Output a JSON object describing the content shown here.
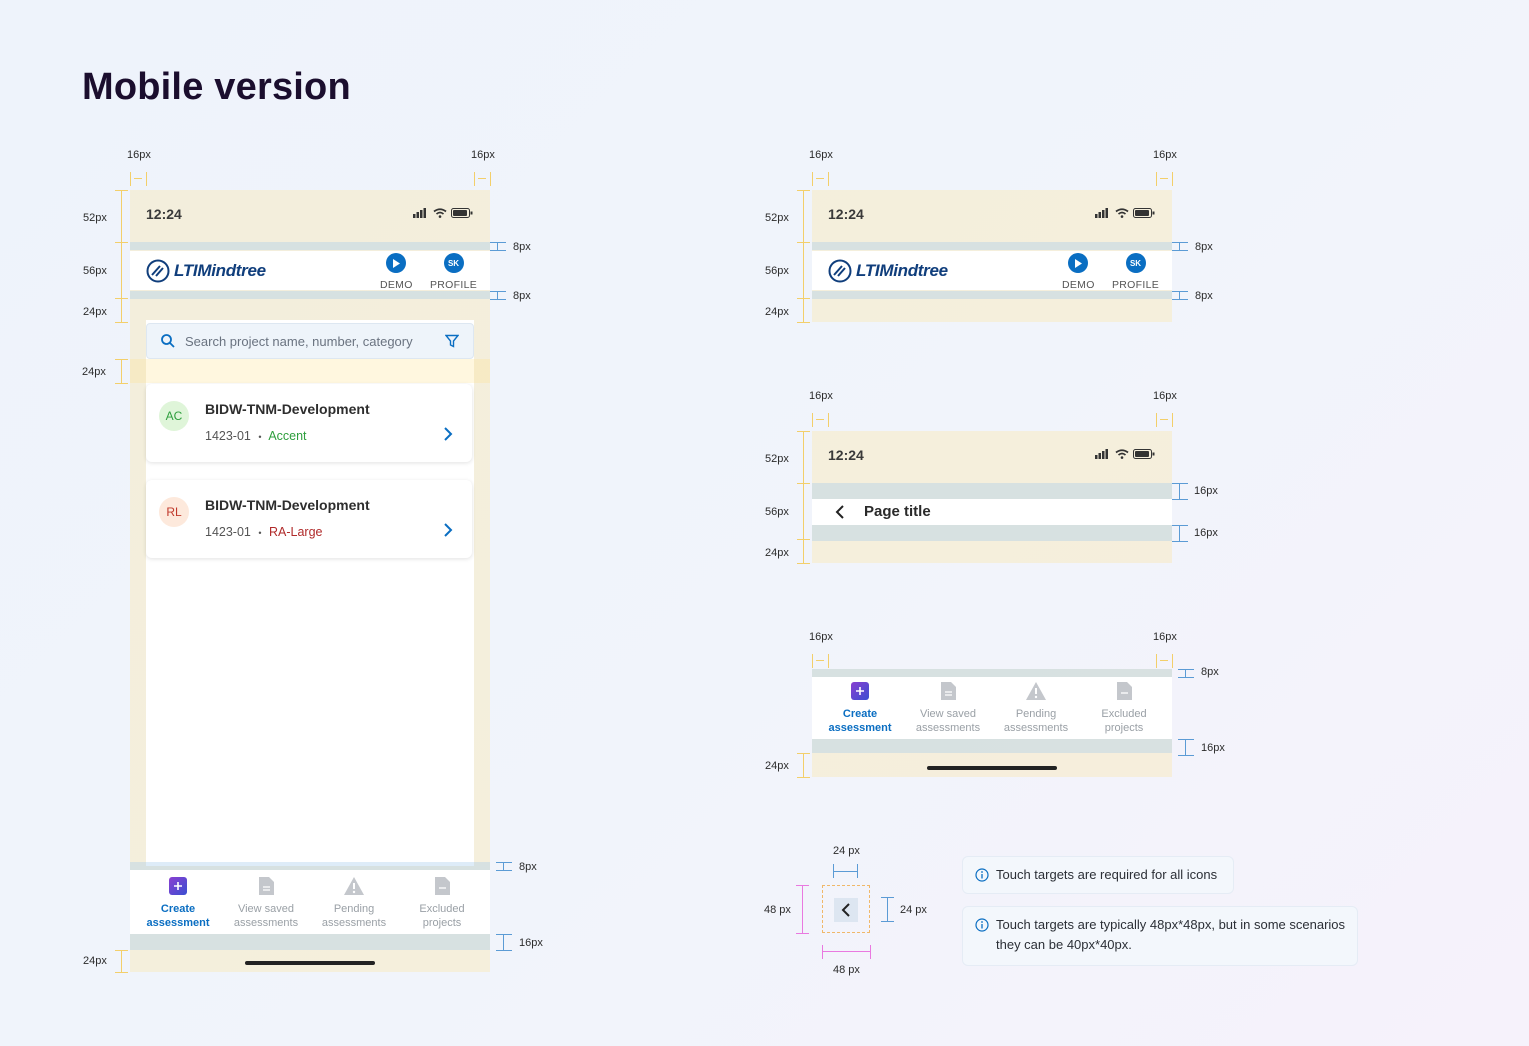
{
  "page": {
    "title": "Mobile version"
  },
  "dims": {
    "px16": "16px",
    "px8": "8px",
    "px52": "52px",
    "px56": "56px",
    "px24": "24px",
    "t24": "24 px",
    "t48": "48 px"
  },
  "status": {
    "time": "12:24"
  },
  "header": {
    "brand": "LTIMindtree",
    "demo_label": "DEMO",
    "profile_label": "PROFILE",
    "profile_initials": "SK"
  },
  "search": {
    "placeholder": "Search project name, number, category"
  },
  "projects": [
    {
      "initials": "AC",
      "name": "BIDW-TNM-Development",
      "number": "1423-01",
      "category": "Accent",
      "category_color": "#2e9e3d",
      "avatar_bg": "#dff5d9",
      "avatar_fg": "#2e9e3d"
    },
    {
      "initials": "RL",
      "name": "BIDW-TNM-Development",
      "number": "1423-01",
      "category": "RA-Large",
      "category_color": "#b02a2a",
      "avatar_bg": "#fde9dc",
      "avatar_fg": "#c0392b"
    }
  ],
  "bullet": "•",
  "tabs": [
    {
      "line1": "Create",
      "line2": "assessment",
      "icon": "plus-square-icon",
      "active": true
    },
    {
      "line1": "View saved",
      "line2": "assessments",
      "icon": "document-icon",
      "active": false
    },
    {
      "line1": "Pending",
      "line2": "assessments",
      "icon": "warning-icon",
      "active": false
    },
    {
      "line1": "Excluded",
      "line2": "projects",
      "icon": "document-icon",
      "active": false
    }
  ],
  "page_title_bar": {
    "title": "Page title"
  },
  "notes": {
    "note1": "Touch targets are required for all icons",
    "note2_line1": "Touch targets are typically 48px*48px, but in some scenarios",
    "note2_line2": "they can be 40px*40px."
  },
  "colors": {
    "accent": "#0a6ec2",
    "brand": "#103e7c",
    "purple": "#6a3fd1"
  }
}
